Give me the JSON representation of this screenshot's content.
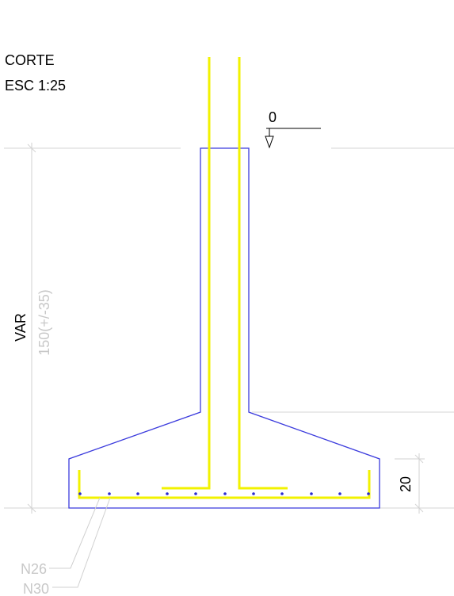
{
  "title": {
    "line1": "CORTE",
    "line2": "ESC 1:25"
  },
  "level_marker": "0",
  "dimensions": {
    "height_primary": "VAR",
    "height_secondary": "150(+/-35)",
    "base_thickness": "20"
  },
  "rebar_labels": {
    "first": "N26",
    "second": "N30"
  },
  "colors": {
    "concrete_outline": "#3b3bdd",
    "rebar": "#f2f200",
    "rebar_dots": "#2a2ad0",
    "dimension_lines": "#d2d2d2",
    "text": "#000000",
    "muted_text": "#c8c8c8"
  }
}
